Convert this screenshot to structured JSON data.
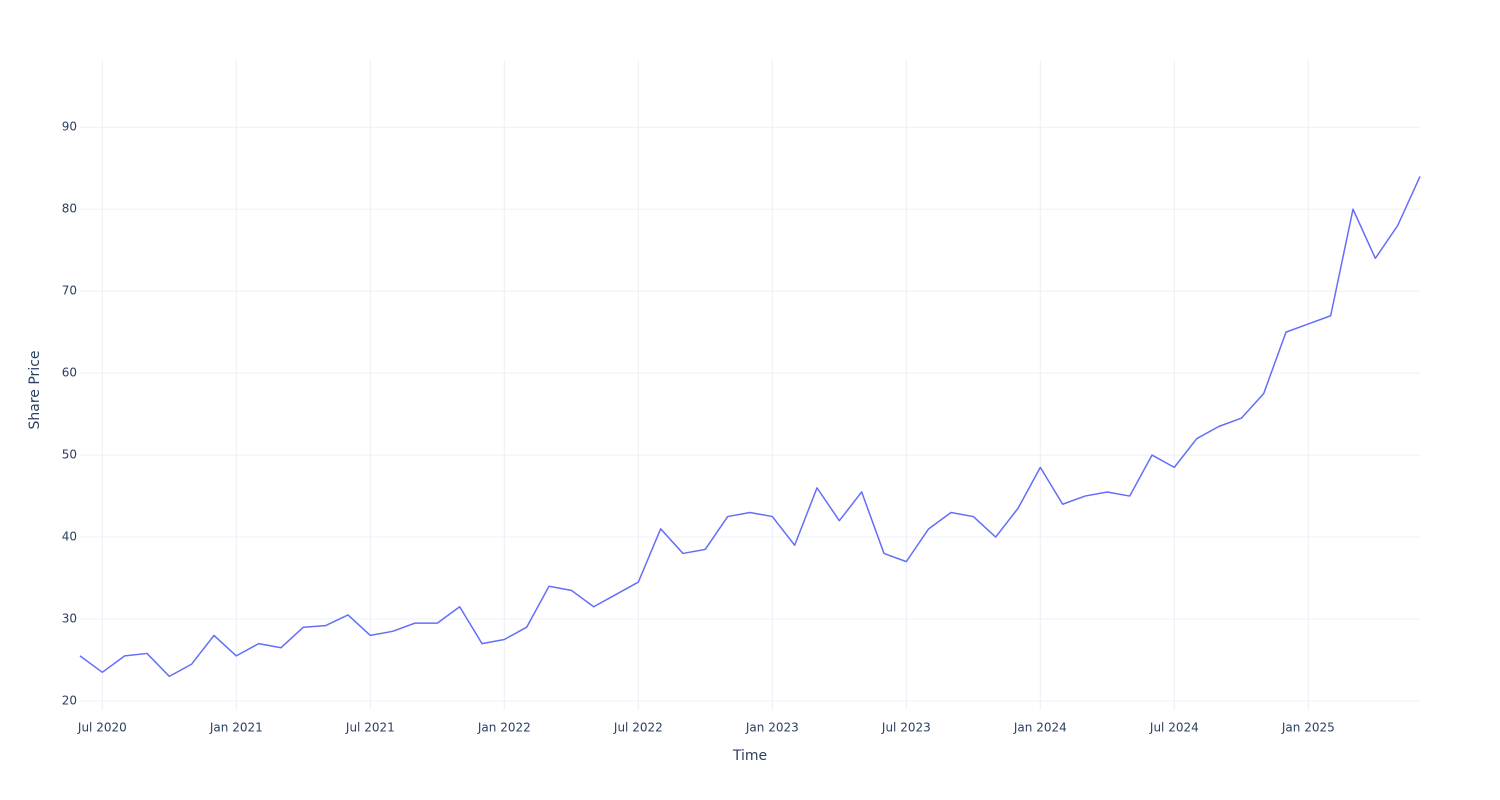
{
  "chart_data": {
    "type": "line",
    "x_label": "Time",
    "y_label": "Share Price",
    "x": [
      "2020-06",
      "2020-07",
      "2020-08",
      "2020-09",
      "2020-10",
      "2020-11",
      "2020-12",
      "2021-01",
      "2021-02",
      "2021-03",
      "2021-04",
      "2021-05",
      "2021-06",
      "2021-07",
      "2021-08",
      "2021-09",
      "2021-10",
      "2021-11",
      "2021-12",
      "2022-01",
      "2022-02",
      "2022-03",
      "2022-04",
      "2022-05",
      "2022-06",
      "2022-07",
      "2022-08",
      "2022-09",
      "2022-10",
      "2022-11",
      "2022-12",
      "2023-01",
      "2023-02",
      "2023-03",
      "2023-04",
      "2023-05",
      "2023-06",
      "2023-07",
      "2023-08",
      "2023-09",
      "2023-10",
      "2023-11",
      "2023-12",
      "2024-01",
      "2024-02",
      "2024-03",
      "2024-04",
      "2024-05",
      "2024-06",
      "2024-07",
      "2024-08",
      "2024-09",
      "2024-10",
      "2024-11",
      "2024-12",
      "2025-01",
      "2025-02",
      "2025-03",
      "2025-04",
      "2025-05",
      "2025-06"
    ],
    "series": [
      {
        "color": "#636efa",
        "values": [
          25.5,
          23.5,
          25.5,
          25.8,
          23,
          24.5,
          28,
          25.5,
          27,
          26.5,
          29,
          29.2,
          30.5,
          28,
          28.5,
          29.5,
          29.5,
          31.5,
          27,
          27.5,
          29,
          34,
          33.5,
          31.5,
          33,
          34.5,
          41,
          38,
          38.5,
          42.5,
          43,
          42.5,
          39,
          46,
          42,
          45.5,
          38,
          37,
          41,
          43,
          42.5,
          40,
          43.5,
          48.5,
          44,
          45,
          45.5,
          45,
          50,
          48.5,
          52,
          53.5,
          54.5,
          57.5,
          65,
          66,
          67,
          80,
          74,
          78,
          84
        ]
      }
    ],
    "xlim": [
      "2020-06",
      "2025-06"
    ],
    "xticks": [
      {
        "value": "2020-07",
        "label": "Jul 2020"
      },
      {
        "value": "2021-01",
        "label": "Jan 2021"
      },
      {
        "value": "2021-07",
        "label": "Jul 2021"
      },
      {
        "value": "2022-01",
        "label": "Jan 2022"
      },
      {
        "value": "2022-07",
        "label": "Jul 2022"
      },
      {
        "value": "2023-01",
        "label": "Jan 2023"
      },
      {
        "value": "2023-07",
        "label": "Jul 2023"
      },
      {
        "value": "2024-01",
        "label": "Jan 2024"
      },
      {
        "value": "2024-07",
        "label": "Jul 2024"
      },
      {
        "value": "2025-01",
        "label": "Jan 2025"
      }
    ],
    "ylim": [
      18.9,
      98.2
    ],
    "yticks": [
      20,
      30,
      40,
      50,
      60,
      70,
      80,
      90
    ],
    "grid": true
  }
}
